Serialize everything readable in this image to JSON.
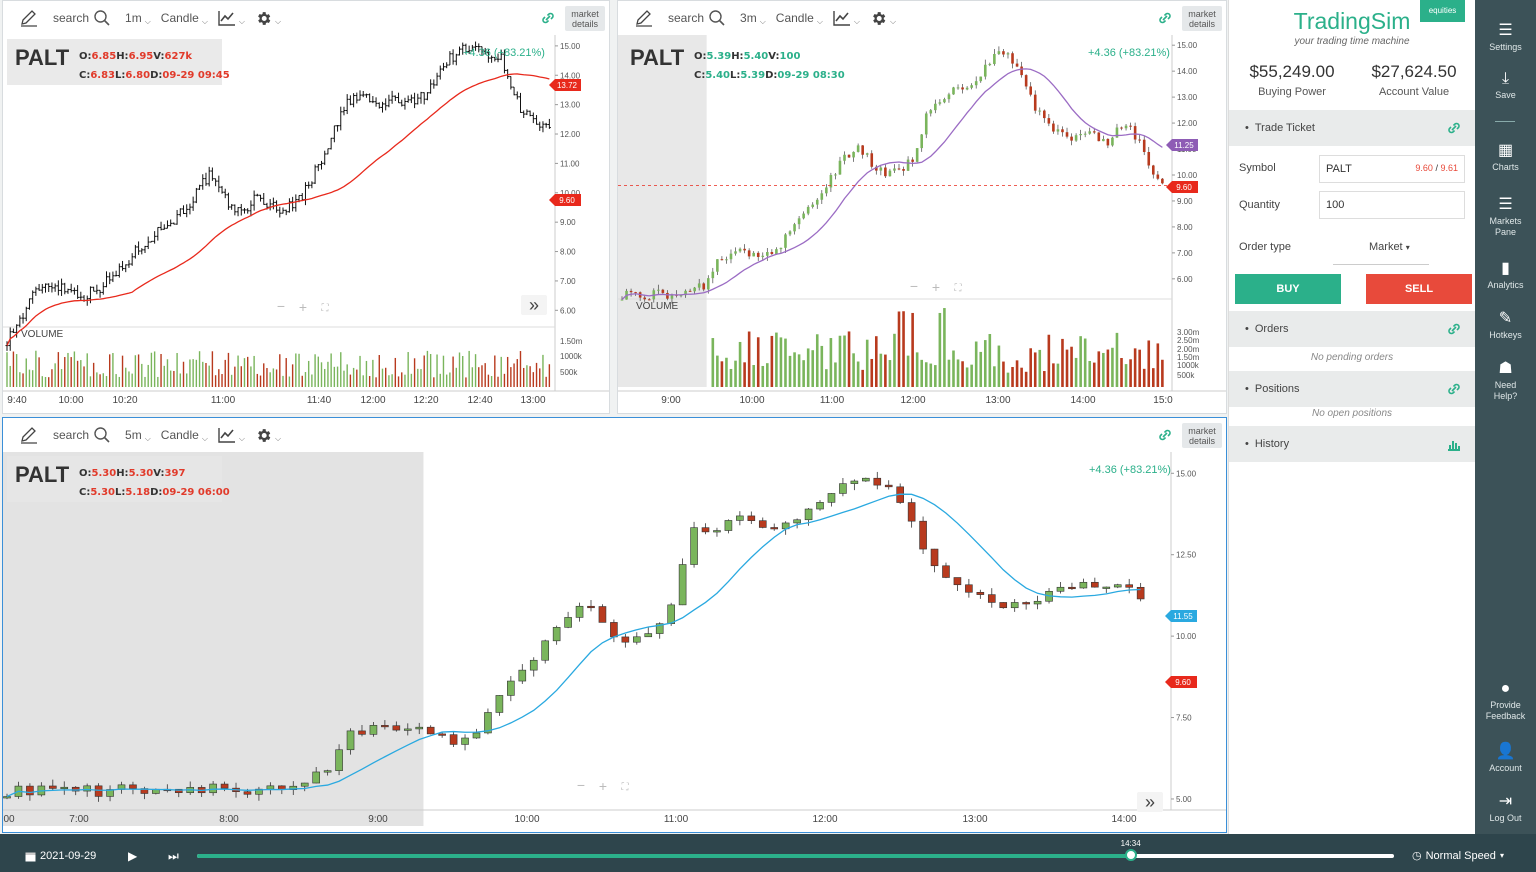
{
  "charts": [
    {
      "id": "chart1",
      "toolbar": {
        "search_label": "search",
        "interval": "1m",
        "chart_type": "Candle",
        "market_details": "market details"
      },
      "legend": {
        "symbol": "PALT",
        "o_label": "O:",
        "o": "6.85",
        "h_label": "H:",
        "h": "6.95",
        "v_label": "V:",
        "v": "627k",
        "c_label": "C:",
        "c": "6.83",
        "l_label": "L:",
        "l": "6.80",
        "d_label": "D:",
        "d": "09-29 09:45"
      },
      "change": "+4.36 (+83.21%)",
      "price_ticks": [
        "15.00",
        "14.00",
        "13.00",
        "12.00",
        "11.00",
        "10.00",
        "9.00",
        "8.00",
        "7.00",
        "6.00"
      ],
      "volume_label": "VOLUME",
      "volume_ticks": [
        "1.50m",
        "1000k",
        "500k"
      ],
      "time_ticks": [
        "9:40",
        "10:00",
        "10:20",
        "11:00",
        "11:40",
        "12:00",
        "12:20",
        "12:40",
        "13:00"
      ],
      "badges": [
        {
          "text": "13.72",
          "color": "#e8291c"
        },
        {
          "text": "9.60",
          "color": "#e8291c"
        }
      ]
    },
    {
      "id": "chart2",
      "toolbar": {
        "search_label": "search",
        "interval": "3m",
        "chart_type": "Candle",
        "market_details": "market details"
      },
      "legend": {
        "symbol": "PALT",
        "o_label": "O:",
        "o": "5.39",
        "h_label": "H:",
        "h": "5.40",
        "v_label": "V:",
        "v": "100",
        "c_label": "C:",
        "c": "5.40",
        "l_label": "L:",
        "l": "5.39",
        "d_label": "D:",
        "d": "09-29 08:30"
      },
      "change": "+4.36 (+83.21%)",
      "price_ticks": [
        "15.00",
        "14.00",
        "13.00",
        "12.00",
        "11.00",
        "10.00",
        "9.00",
        "8.00",
        "7.00",
        "6.00"
      ],
      "volume_label": "VOLUME",
      "volume_ticks": [
        "3.00m",
        "2.50m",
        "2.00m",
        "1.50m",
        "1000k",
        "500k"
      ],
      "time_ticks": [
        "9:00",
        "10:00",
        "11:00",
        "12:00",
        "13:00",
        "14:00",
        "15:0"
      ],
      "badges": [
        {
          "text": "11.25",
          "color": "#8e5cb5"
        },
        {
          "text": "9.60",
          "color": "#e8291c"
        }
      ]
    },
    {
      "id": "chart3",
      "toolbar": {
        "search_label": "search",
        "interval": "5m",
        "chart_type": "Candle",
        "market_details": "market details"
      },
      "legend": {
        "symbol": "PALT",
        "o_label": "O:",
        "o": "5.30",
        "h_label": "H:",
        "h": "5.30",
        "v_label": "V:",
        "v": "397",
        "c_label": "C:",
        "c": "5.30",
        "l_label": "L:",
        "l": "5.18",
        "d_label": "D:",
        "d": "09-29 06:00"
      },
      "change": "+4.36 (+83.21%)",
      "price_ticks": [
        "15.00",
        "12.50",
        "10.00",
        "7.50",
        "5.00"
      ],
      "time_ticks": [
        "00",
        "7:00",
        "8:00",
        "9:00",
        "10:00",
        "11:00",
        "12:00",
        "13:00",
        "14:00"
      ],
      "badges": [
        {
          "text": "11.55",
          "color": "#2aa9e0"
        },
        {
          "text": "9.60",
          "color": "#e8291c"
        }
      ]
    }
  ],
  "colors": {
    "up": "#7ab55c",
    "down": "#b83a1e",
    "accent": "#2bb08a",
    "sell": "#e84a3b",
    "rail": "#3c5258",
    "footer": "#2e454c"
  },
  "sidebar": {
    "brand": "TradingSim",
    "badge": "equities",
    "tagline": "your trading time machine",
    "buying_power": "$55,249.00",
    "buying_power_label": "Buying Power",
    "account_value": "$27,624.50",
    "account_value_label": "Account Value",
    "trade_ticket": "Trade Ticket",
    "symbol_label": "Symbol",
    "symbol_value": "PALT",
    "bid": "9.60",
    "ask": "9.61",
    "quantity_label": "Quantity",
    "quantity_value": "100",
    "order_type_label": "Order type",
    "order_type_value": "Market",
    "buy": "BUY",
    "sell": "SELL",
    "orders": "Orders",
    "orders_empty": "No pending orders",
    "positions": "Positions",
    "positions_empty": "No open positions",
    "history": "History"
  },
  "rail": {
    "settings": "Settings",
    "save": "Save",
    "charts": "Charts",
    "markets": "Markets Pane",
    "analytics": "Analytics",
    "hotkeys": "Hotkeys",
    "help": "Need Help?",
    "feedback": "Provide Feedback",
    "account": "Account",
    "logout": "Log Out"
  },
  "footer": {
    "date": "2021-09-29",
    "time": "14:34",
    "speed": "Normal Speed",
    "progress": 0.78
  }
}
